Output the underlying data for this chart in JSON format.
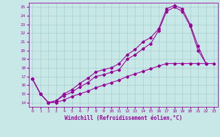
{
  "xlabel": "Windchill (Refroidissement éolien,°C)",
  "xlim": [
    -0.5,
    23.5
  ],
  "ylim": [
    13.5,
    25.5
  ],
  "xticks": [
    0,
    1,
    2,
    3,
    4,
    5,
    6,
    7,
    8,
    9,
    10,
    11,
    12,
    13,
    14,
    15,
    16,
    17,
    18,
    19,
    20,
    21,
    22,
    23
  ],
  "yticks": [
    14,
    15,
    16,
    17,
    18,
    19,
    20,
    21,
    22,
    23,
    24,
    25
  ],
  "bg_color": "#c8e8e8",
  "line_color": "#990099",
  "line1_x": [
    0,
    1,
    2,
    3,
    4,
    5,
    6,
    7,
    8,
    9,
    10,
    11,
    12,
    13,
    14,
    15,
    16,
    17,
    18,
    19,
    20,
    21,
    22
  ],
  "line1_y": [
    16.7,
    15.0,
    14.0,
    14.2,
    15.0,
    15.5,
    16.2,
    16.8,
    17.5,
    17.8,
    18.0,
    18.5,
    19.5,
    20.1,
    21.0,
    21.5,
    22.5,
    24.8,
    25.2,
    24.8,
    23.0,
    20.5,
    18.5
  ],
  "line2_x": [
    0,
    1,
    2,
    3,
    4,
    5,
    6,
    7,
    8,
    9,
    10,
    11,
    12,
    13,
    14,
    15,
    16,
    17,
    18,
    19,
    20,
    21,
    22
  ],
  "line2_y": [
    16.7,
    15.0,
    14.0,
    14.2,
    14.8,
    15.2,
    15.8,
    16.3,
    17.0,
    17.2,
    17.5,
    17.8,
    19.0,
    19.5,
    20.2,
    20.8,
    22.3,
    24.5,
    25.0,
    24.5,
    22.8,
    20.0,
    18.5
  ],
  "line3_x": [
    0,
    1,
    2,
    3,
    4,
    5,
    6,
    7,
    8,
    9,
    10,
    11,
    12,
    13,
    14,
    15,
    16,
    17,
    18,
    19,
    20,
    21,
    22,
    23
  ],
  "line3_y": [
    16.7,
    15.0,
    14.0,
    14.0,
    14.3,
    14.7,
    15.0,
    15.3,
    15.7,
    16.0,
    16.3,
    16.6,
    17.0,
    17.3,
    17.6,
    17.9,
    18.2,
    18.5,
    18.5,
    18.5,
    18.5,
    18.5,
    18.5,
    18.5
  ]
}
